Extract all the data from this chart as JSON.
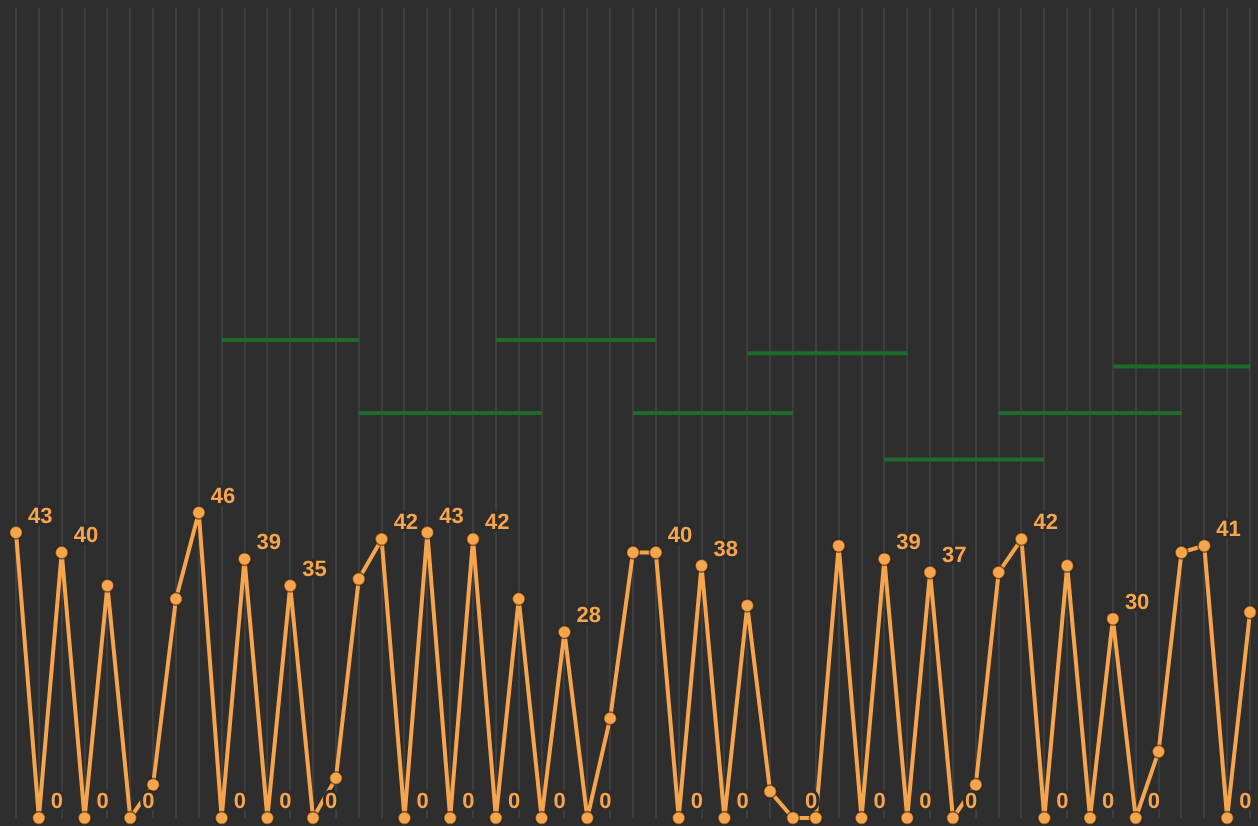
{
  "chart_data": {
    "type": "line",
    "categories": [
      null,
      null,
      null,
      null,
      null,
      null,
      null,
      null,
      null,
      null,
      null,
      null,
      null,
      null,
      null,
      null,
      null,
      null,
      null,
      null,
      null,
      null,
      null,
      null,
      null,
      null,
      null,
      null,
      null,
      null,
      null,
      null,
      null,
      null,
      null,
      null,
      null,
      null,
      null,
      null,
      null,
      null,
      null,
      null,
      null,
      null,
      null,
      null,
      null,
      null,
      null,
      null,
      null,
      null,
      null
    ],
    "ylim": [
      0,
      122
    ],
    "grid": "x",
    "legend": false,
    "marker": "circle",
    "series": [
      {
        "color": "#f7a54c",
        "values": [
          43,
          0,
          40,
          0,
          35,
          0,
          5,
          33,
          46,
          0,
          39,
          0,
          35,
          0,
          6,
          36,
          42,
          0,
          43,
          0,
          42,
          0,
          33,
          0,
          28,
          0,
          15,
          40,
          40,
          0,
          38,
          0,
          32,
          4,
          0,
          0,
          41,
          0,
          39,
          0,
          37,
          0,
          5,
          37,
          42,
          0,
          38,
          0,
          30,
          0,
          10,
          40,
          41,
          0,
          31
        ],
        "value_labels": [
          "43",
          "0",
          "40",
          "0",
          null,
          "0",
          null,
          null,
          "46",
          "0",
          "39",
          "0",
          "35",
          "0",
          null,
          null,
          "42",
          "0",
          "43",
          "0",
          "42",
          "0",
          null,
          "0",
          "28",
          "0",
          null,
          null,
          "40",
          "0",
          "38",
          "0",
          null,
          null,
          "0",
          null,
          null,
          "0",
          "39",
          "0",
          "37",
          "0",
          null,
          null,
          "42",
          "0",
          null,
          "0",
          "30",
          "0",
          null,
          null,
          "41",
          "0",
          null
        ]
      },
      {
        "type": "line",
        "color": "#1f6b2c",
        "marker": "none",
        "values": [
          null,
          null,
          null,
          null,
          null,
          null,
          null,
          null,
          null,
          72,
          72,
          72,
          72,
          72,
          72,
          72,
          null,
          null,
          null,
          null,
          null,
          72,
          72,
          72,
          72,
          72,
          72,
          72,
          72,
          null,
          null,
          null,
          70,
          70,
          70,
          70,
          70,
          70,
          70,
          70,
          null,
          null,
          null,
          61,
          61,
          61,
          61,
          61,
          61,
          61,
          61,
          61,
          null,
          null,
          null
        ]
      },
      {
        "type": "line",
        "color": "#1f6b2c",
        "marker": "none",
        "values": [
          null,
          null,
          null,
          null,
          null,
          null,
          null,
          null,
          null,
          null,
          null,
          null,
          null,
          null,
          null,
          61,
          61,
          61,
          61,
          61,
          61,
          61,
          61,
          61,
          null,
          null,
          null,
          61,
          61,
          61,
          61,
          61,
          61,
          61,
          61,
          null,
          null,
          null,
          54,
          54,
          54,
          54,
          54,
          54,
          54,
          54,
          null,
          null,
          68,
          68,
          68,
          68,
          68,
          68,
          68
        ]
      }
    ]
  }
}
